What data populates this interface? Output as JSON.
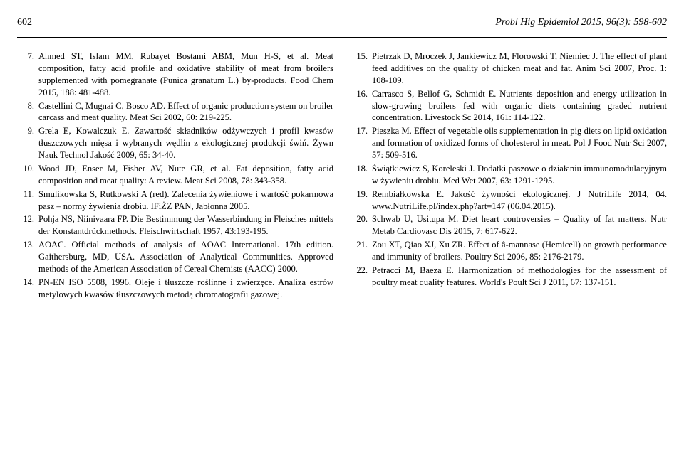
{
  "header": {
    "page_number": "602",
    "journal": "Probl Hig Epidemiol 2015, 96(3): 598-602"
  },
  "left_column": [
    {
      "num": "7.",
      "text": "Ahmed ST, Islam MM, Rubayet Bostami ABM, Mun H-S, et al. Meat composition, fatty acid profile and oxidative stability of meat from broilers supplemented with pomegranate (Punica granatum L.) by-products. Food Chem 2015, 188: 481-488."
    },
    {
      "num": "8.",
      "text": "Castellini C, Mugnai C, Bosco AD. Effect of organic production system on broiler carcass and meat quality. Meat Sci 2002, 60: 219-225."
    },
    {
      "num": "9.",
      "text": "Grela E, Kowalczuk E. Zawartość składników odżywczych i profil kwasów tłuszczowych mięsa i wybranych wędlin z ekologicznej produkcji świń. Żywn Nauk Technol Jakość 2009, 65: 34-40."
    },
    {
      "num": "10.",
      "text": "Wood JD, Enser M, Fisher AV, Nute GR, et al. Fat deposition, fatty acid composition and meat quality: A review. Meat Sci 2008, 78: 343-358."
    },
    {
      "num": "11.",
      "text": "Smulikowska S, Rutkowski A (red). Zalecenia żywieniowe i wartość pokarmowa pasz – normy żywienia drobiu. IFiŻZ PAN, Jabłonna 2005."
    },
    {
      "num": "12.",
      "text": "Pohja NS, Niinivaara FP. Die Bestimmung der Wasserbindung in Fleisches mittels der Konstantdrückmethods. Fleischwirtschaft 1957, 43:193-195."
    },
    {
      "num": "13.",
      "text": "AOAC. Official methods of analysis of AOAC International. 17th edition. Gaithersburg, MD, USA. Association of Analytical Communities. Approved methods of the American Association of Cereal Chemists (AACC) 2000."
    },
    {
      "num": "14.",
      "text": "PN-EN ISO 5508, 1996. Oleje i tłuszcze roślinne i zwierzęce. Analiza estrów metylowych kwasów tłuszczowych metodą chromatografii gazowej."
    }
  ],
  "right_column": [
    {
      "num": "15.",
      "text": "Pietrzak D, Mroczek J, Jankiewicz M, Florowski T, Niemiec J. The effect of plant feed additives on the quality of chicken meat and fat. Anim Sci 2007, Proc. 1: 108-109."
    },
    {
      "num": "16.",
      "text": "Carrasco S, Bellof G, Schmidt E. Nutrients deposition and energy utilization in slow-growing broilers fed with organic diets containing graded nutrient concentration. Livestock Sc 2014, 161: 114-122."
    },
    {
      "num": "17.",
      "text": "Pieszka M. Effect of vegetable oils supplementation in pig diets on lipid oxidation and formation of oxidized forms of cholesterol in meat. Pol J Food Nutr Sci 2007, 57: 509-516."
    },
    {
      "num": "18.",
      "text": "Świątkiewicz S, Koreleski J. Dodatki paszowe o działaniu immunomodulacyjnym w żywieniu drobiu. Med Wet 2007, 63: 1291-1295."
    },
    {
      "num": "19.",
      "text": "Rembiałkowska E. Jakość żywności ekologicznej. J NutriLife 2014, 04. www.NutriLife.pl/index.php?art=147 (06.04.2015)."
    },
    {
      "num": "20.",
      "text": "Schwab U, Usitupa M. Diet heart controversies – Quality of fat matters. Nutr Metab Cardiovasc Dis 2015, 7: 617-622."
    },
    {
      "num": "21.",
      "text": "Zou XT, Qiao XJ, Xu ZR. Effect of â-mannase (Hemicell) on growth performance and immunity of broilers. Poultry Sci 2006, 85: 2176-2179."
    },
    {
      "num": "22.",
      "text": "Petracci M, Baeza E. Harmonization of methodologies for the assessment of poultry meat quality features. World's Poult Sci J 2011, 67: 137-151."
    }
  ]
}
